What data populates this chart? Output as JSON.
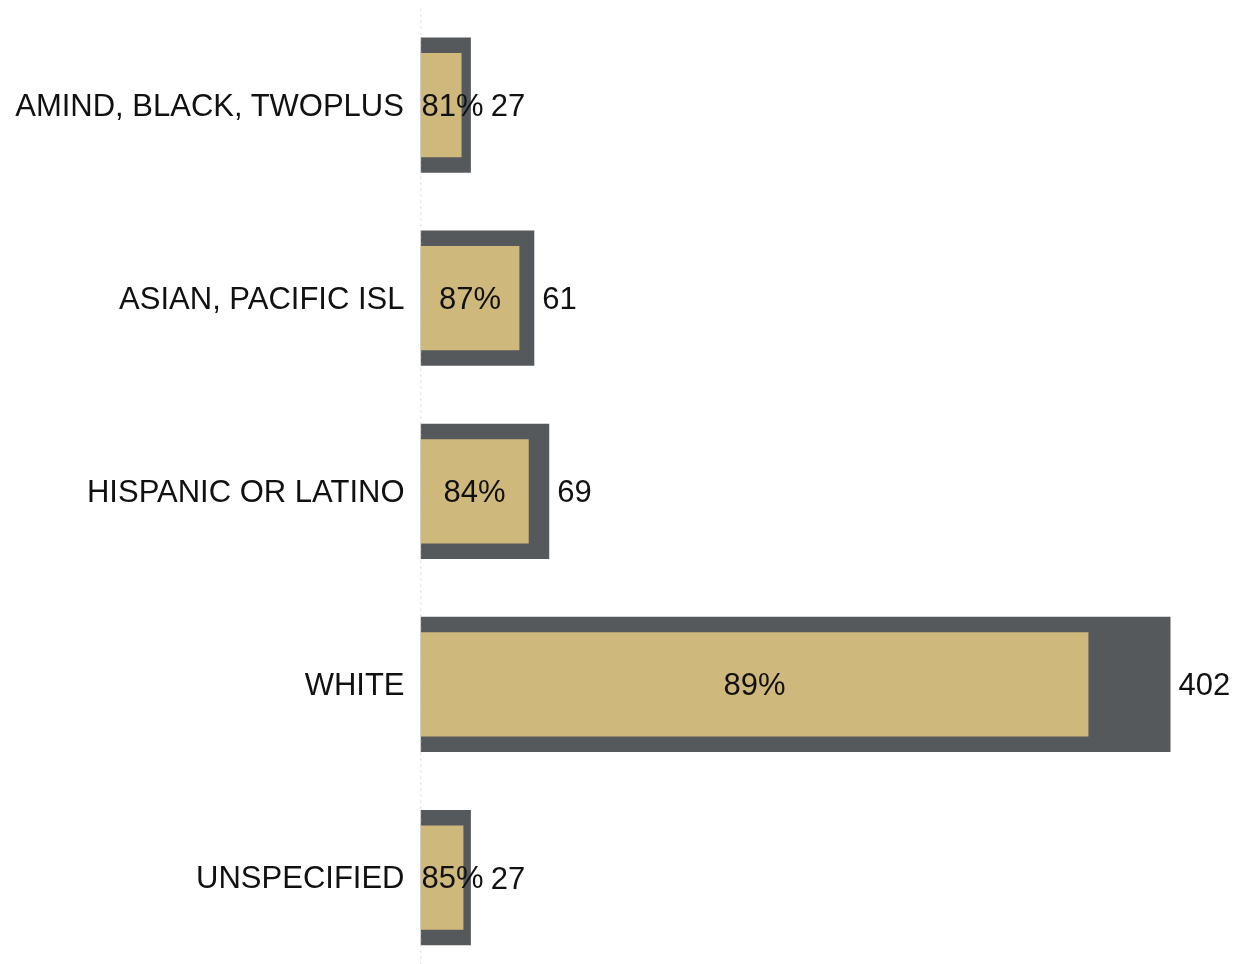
{
  "chart_data": {
    "type": "bar",
    "orientation": "horizontal",
    "categories": [
      "AMIND, BLACK, TWOPLUS",
      "ASIAN, PACIFIC ISL",
      "HISPANIC OR LATINO",
      "WHITE",
      "UNSPECIFIED"
    ],
    "series": [
      {
        "color": "#56595c",
        "values": [
          27,
          61,
          69,
          402,
          27
        ],
        "value_labels": [
          "27",
          "61",
          "69",
          "402",
          "27"
        ]
      },
      {
        "color": "#cfb87c",
        "values": [
          22,
          53,
          58,
          358,
          23
        ]
      }
    ],
    "annotations": [
      "81%",
      "87%",
      "84%",
      "89%",
      "85%"
    ],
    "tick_labels": "y",
    "ref_lines": [
      {
        "axis": "x",
        "value": 0,
        "color": "#c8c8c8",
        "line_style": "dotted"
      }
    ]
  }
}
